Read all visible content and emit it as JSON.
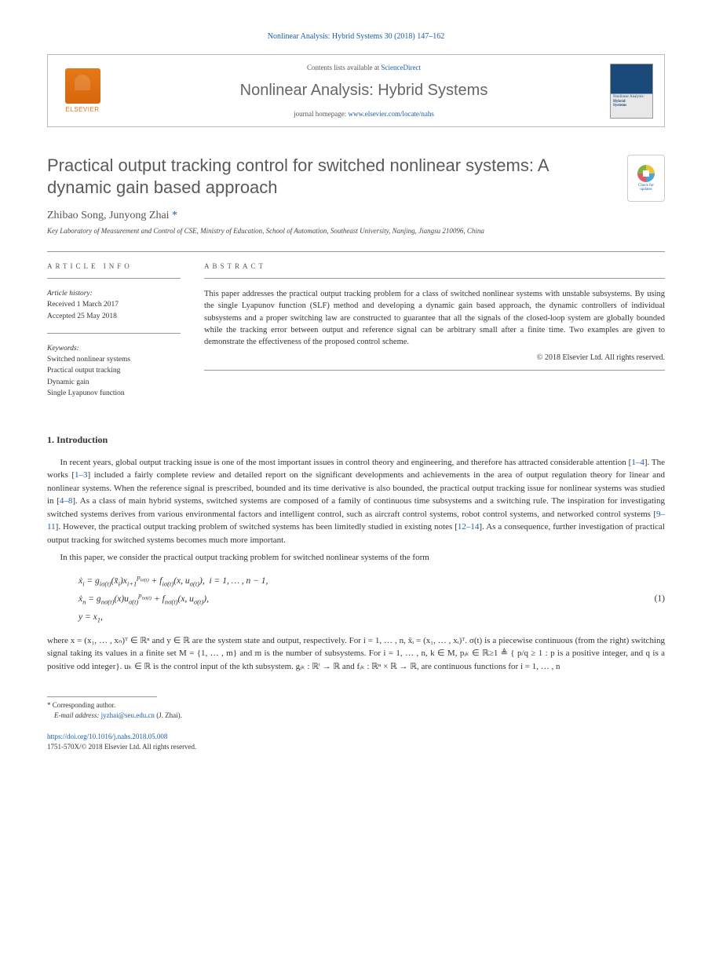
{
  "header": {
    "citation": "Nonlinear Analysis: Hybrid Systems 30 (2018) 147–162",
    "contents_prefix": "Contents lists available at ",
    "contents_link": "ScienceDirect",
    "journal_name": "Nonlinear Analysis: Hybrid Systems",
    "homepage_prefix": "journal homepage: ",
    "homepage_link": "www.elsevier.com/locate/nahs",
    "elsevier_label": "ELSEVIER",
    "cover_line1": "Nonlinear Analysis:",
    "cover_line2": "Hybrid",
    "cover_line3": "Systems"
  },
  "crossmark": {
    "line1": "Check for",
    "line2": "updates"
  },
  "title": "Practical output tracking control for switched nonlinear systems: A dynamic gain based approach",
  "authors": {
    "names": "Zhibao Song, Junyong Zhai",
    "corr_marker": " *"
  },
  "affiliation": "Key Laboratory of Measurement and Control of CSE, Ministry of Education, School of Automation, Southeast University, Nanjing, Jiangsu 210096, China",
  "info": {
    "label": "ARTICLE INFO",
    "history_label": "Article history:",
    "received": "Received 1 March 2017",
    "accepted": "Accepted 25 May 2018",
    "keywords_label": "Keywords:",
    "keywords": [
      "Switched nonlinear systems",
      "Practical output tracking",
      "Dynamic gain",
      "Single Lyapunov function"
    ]
  },
  "abstract": {
    "label": "ABSTRACT",
    "text": "This paper addresses the practical output tracking problem for a class of switched nonlinear systems with unstable subsystems. By using the single Lyapunov function (SLF) method and developing a dynamic gain based approach, the dynamic controllers of individual subsystems and a proper switching law are constructed to guarantee that all the signals of the closed-loop system are globally bounded while the tracking error between output and reference signal can be arbitrary small after a finite time. Two examples are given to demonstrate the effectiveness of the proposed control scheme.",
    "copyright": "© 2018 Elsevier Ltd. All rights reserved."
  },
  "section1": {
    "heading": "1.  Introduction",
    "para1_a": "In recent years, global output tracking issue is one of the most important issues in control theory and engineering, and therefore has attracted considerable attention [",
    "ref1": "1–4",
    "para1_b": "]. The works [",
    "ref2": "1–3",
    "para1_c": "] included a fairly complete review and detailed report on the significant developments and achievements in the area of output regulation theory for linear and nonlinear systems. When the reference signal is prescribed, bounded and its time derivative is also bounded, the practical output tracking issue for nonlinear systems was studied in [",
    "ref3": "4–8",
    "para1_d": "]. As a class of main hybrid systems, switched systems are composed of a family of continuous time subsystems and a switching rule. The inspiration for investigating switched systems derives from various environmental factors and intelligent control, such as aircraft control systems, robot control systems, and networked control systems [",
    "ref4": "9–11",
    "para1_e": "]. However, the practical output tracking problem of switched systems has been limitedly studied in existing notes [",
    "ref5": "12–14",
    "para1_f": "]. As a consequence, further investigation of practical output tracking for switched systems becomes much more important.",
    "para2": "In this paper, we consider the practical output tracking problem for switched nonlinear systems of the form",
    "eq_number": "(1)",
    "para3": "where x = (x₁, … , xₙ)ᵀ ∈ ℝⁿ and y ∈ ℝ are the system state and output, respectively. For i = 1, … , n, x̄ᵢ = (x₁, … , xᵢ)ᵀ. σ(t) is a piecewise continuous (from the right) switching signal taking its values in a finite set M = {1, … , m} and m is the number of subsystems. For i = 1, … , n, k ∈ M, pᵢₖ ∈ ℝ≥1 ≜ { p/q ≥ 1 : p is a positive integer, and q is a positive odd integer}. uₖ ∈ ℝ is the control input of the kth subsystem. gᵢₖ : ℝⁱ → ℝ and fᵢₖ : ℝⁿ × ℝ → ℝ, are continuous functions for i = 1, … , n"
  },
  "footer": {
    "corr_label": "* Corresponding author.",
    "email_prefix": "E-mail address: ",
    "email": "jyzhai@seu.edu.cn",
    "email_suffix": " (J. Zhai).",
    "doi": "https://doi.org/10.1016/j.nahs.2018.05.008",
    "issn": "1751-570X/© 2018 Elsevier Ltd. All rights reserved."
  },
  "colors": {
    "link": "#1a5da8",
    "elsevier_orange": "#e67817",
    "text_gray": "#5a5a5a",
    "border_gray": "#bbbbbb"
  }
}
